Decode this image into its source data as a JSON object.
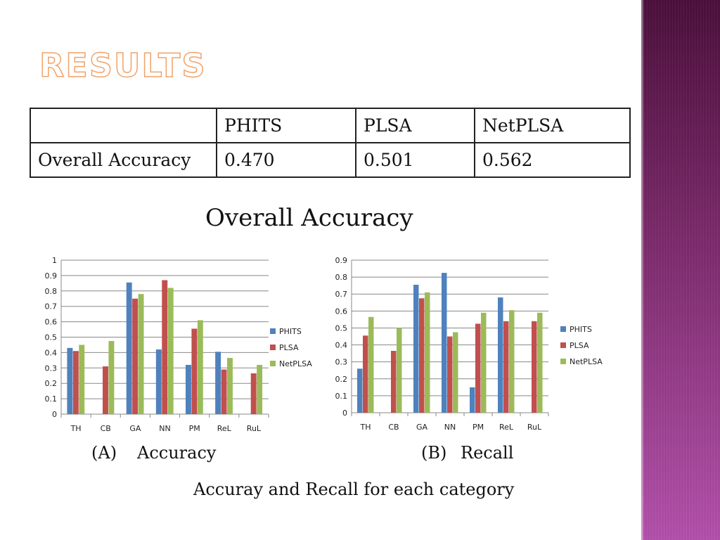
{
  "slide": {
    "title": "RESULTS",
    "table_caption": "Overall Accuracy",
    "figure_caption": "Accuray and Recall for each category"
  },
  "table": {
    "headers": [
      "",
      "PHITS",
      "PLSA",
      "NetPLSA"
    ],
    "rows": [
      [
        "Overall Accuracy",
        "0.470",
        "0.501",
        "0.562"
      ]
    ]
  },
  "colors": {
    "PHITS": "#4f81bd",
    "PLSA": "#c0504d",
    "NetPLSA": "#9bbb59",
    "gridline": "#888888",
    "side_panel": "#7a2a6a",
    "title": "#f0a36a"
  },
  "chart_data": [
    {
      "type": "bar",
      "label": "(A)",
      "caption": "Accuracy",
      "categories": [
        "TH",
        "CB",
        "GA",
        "NN",
        "PM",
        "ReL",
        "RuL"
      ],
      "ylim": [
        0,
        1
      ],
      "yticks": [
        "0",
        "0.1",
        "0.2",
        "0.3",
        "0.4",
        "0.5",
        "0.6",
        "0.7",
        "0.8",
        "0.9",
        "1"
      ],
      "grid": true,
      "legend": "right",
      "series": [
        {
          "name": "PHITS",
          "values": [
            0.43,
            0,
            0.855,
            0.42,
            0.32,
            0.405,
            0
          ]
        },
        {
          "name": "PLSA",
          "values": [
            0.41,
            0.31,
            0.75,
            0.87,
            0.555,
            0.29,
            0.265
          ]
        },
        {
          "name": "NetPLSA",
          "values": [
            0.45,
            0.475,
            0.78,
            0.82,
            0.61,
            0.365,
            0.32
          ]
        }
      ]
    },
    {
      "type": "bar",
      "label": "(B)",
      "caption": "Recall",
      "categories": [
        "TH",
        "CB",
        "GA",
        "NN",
        "PM",
        "ReL",
        "RuL"
      ],
      "ylim": [
        0,
        0.9
      ],
      "yticks": [
        "0",
        "0.1",
        "0.2",
        "0.3",
        "0.4",
        "0.5",
        "0.6",
        "0.7",
        "0.8",
        "0.9"
      ],
      "grid": true,
      "legend": "right",
      "series": [
        {
          "name": "PHITS",
          "values": [
            0.26,
            0,
            0.755,
            0.825,
            0.15,
            0.68,
            0
          ]
        },
        {
          "name": "PLSA",
          "values": [
            0.455,
            0.365,
            0.675,
            0.45,
            0.525,
            0.54,
            0.54
          ]
        },
        {
          "name": "NetPLSA",
          "values": [
            0.565,
            0.5,
            0.71,
            0.475,
            0.59,
            0.605,
            0.59
          ]
        }
      ]
    }
  ]
}
